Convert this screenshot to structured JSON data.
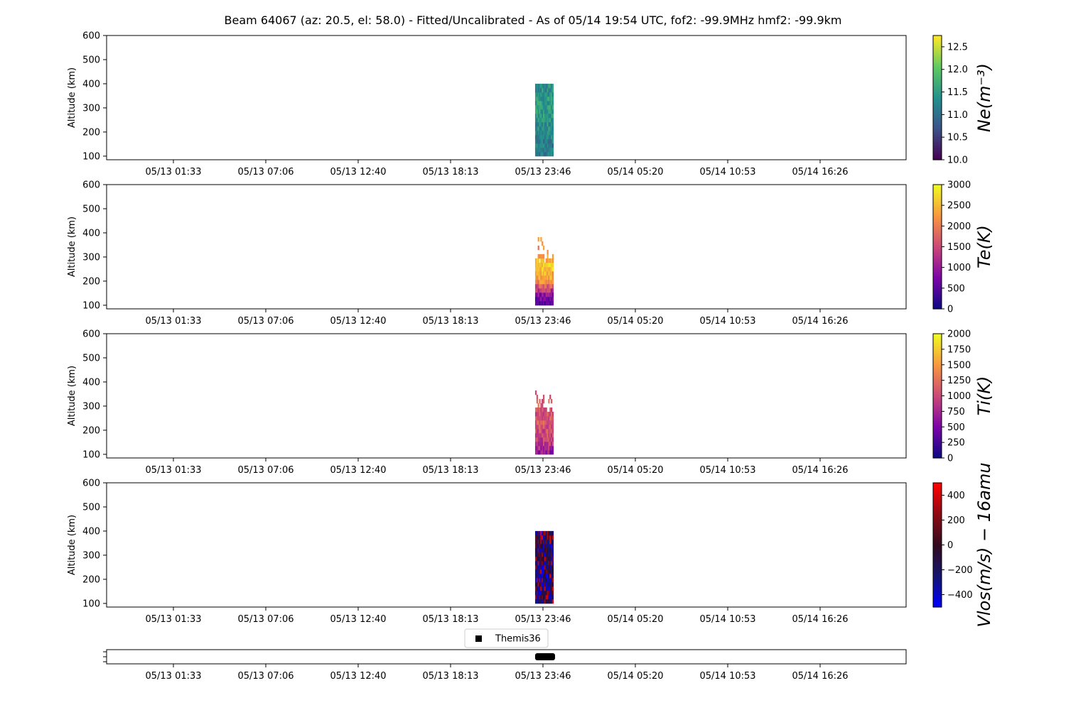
{
  "title": "Beam 64067 (az: 20.5, el: 58.0) - Fitted/Uncalibrated - As of 05/14 19:54 UTC, fof2: -99.9MHz  hmf2: -99.9km",
  "x_tick_labels": [
    "05/13 01:33",
    "05/13 07:06",
    "05/13 12:40",
    "05/13 18:13",
    "05/13 23:46",
    "05/14 05:20",
    "05/14 10:53",
    "05/14 16:26"
  ],
  "chart_data": [
    {
      "type": "heatmap",
      "id": "ne",
      "ylabel": "Altitude (km)",
      "y_ticks": [
        100,
        200,
        300,
        400,
        500,
        600
      ],
      "ylim": [
        85,
        600
      ],
      "data_x_hours": [
        23.3,
        24.4
      ],
      "data_alt_km": [
        100,
        410
      ],
      "colorbar": {
        "label": "Ne(m⁻³)",
        "colormap": "viridis",
        "min": 10.0,
        "max": 12.75,
        "ticks": [
          "10.0",
          "10.5",
          "11.0",
          "11.5",
          "12.0",
          "12.5"
        ],
        "tick_values": [
          10.0,
          10.5,
          11.0,
          11.5,
          12.0,
          12.5
        ]
      },
      "profile_alt_km": [
        100,
        150,
        200,
        250,
        300,
        350,
        400
      ],
      "profile_values": [
        11.1,
        11.2,
        11.3,
        11.45,
        11.55,
        11.45,
        11.3
      ]
    },
    {
      "type": "heatmap",
      "id": "te",
      "ylabel": "Altitude (km)",
      "y_ticks": [
        100,
        200,
        300,
        400,
        500,
        600
      ],
      "ylim": [
        85,
        600
      ],
      "data_x_hours": [
        23.3,
        24.4
      ],
      "data_alt_km": [
        100,
        385
      ],
      "colorbar": {
        "label": "Te(K)",
        "colormap": "plasma",
        "min": 0,
        "max": 3000,
        "ticks": [
          "0",
          "500",
          "1000",
          "1500",
          "2000",
          "2500",
          "3000"
        ],
        "tick_values": [
          0,
          500,
          1000,
          1500,
          2000,
          2500,
          3000
        ]
      },
      "profile_alt_km": [
        100,
        150,
        200,
        250,
        300,
        350
      ],
      "profile_values": [
        400,
        1000,
        2200,
        2600,
        2500,
        2200
      ]
    },
    {
      "type": "heatmap",
      "id": "ti",
      "ylabel": "Altitude (km)",
      "y_ticks": [
        100,
        200,
        300,
        400,
        500,
        600
      ],
      "ylim": [
        85,
        600
      ],
      "data_x_hours": [
        23.3,
        24.4
      ],
      "data_alt_km": [
        100,
        385
      ],
      "colorbar": {
        "label": "Ti(K)",
        "colormap": "plasma",
        "min": 0,
        "max": 2000,
        "ticks": [
          "0",
          "250",
          "500",
          "750",
          "1000",
          "1250",
          "1500",
          "1750",
          "2000"
        ],
        "tick_values": [
          0,
          250,
          500,
          750,
          1000,
          1250,
          1500,
          1750,
          2000
        ]
      },
      "profile_alt_km": [
        100,
        150,
        200,
        250,
        300
      ],
      "profile_values": [
        600,
        950,
        1050,
        1100,
        1100
      ]
    },
    {
      "type": "heatmap",
      "id": "vlos",
      "ylabel": "Altitude (km)",
      "y_ticks": [
        100,
        200,
        300,
        400,
        500,
        600
      ],
      "ylim": [
        85,
        600
      ],
      "data_x_hours": [
        23.3,
        24.4
      ],
      "data_alt_km": [
        100,
        410
      ],
      "colorbar": {
        "label": "Vlos(m/s) − 16amu",
        "colormap": "bluered",
        "min": -500,
        "max": 500,
        "ticks": [
          "−400",
          "−200",
          "0",
          "200",
          "400"
        ],
        "tick_values": [
          -400,
          -200,
          0,
          200,
          400
        ]
      },
      "profile_alt_km": [
        100,
        200,
        300,
        400
      ],
      "profile_values": [
        -150,
        -200,
        -150,
        -200
      ]
    },
    {
      "type": "scatter",
      "id": "themis",
      "legend": "Themis36",
      "marker_x_hours": [
        23.3,
        24.5
      ]
    }
  ]
}
